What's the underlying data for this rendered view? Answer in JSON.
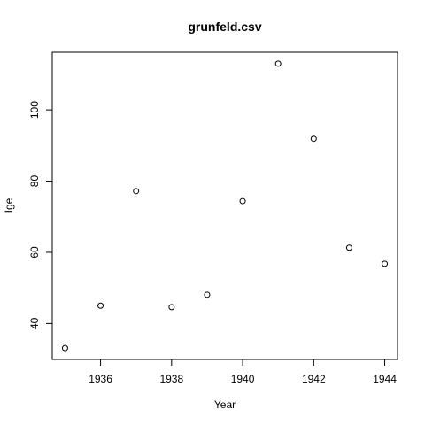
{
  "chart_data": {
    "type": "scatter",
    "title": "grunfeld.csv",
    "xlabel": "Year",
    "ylabel": "Ige",
    "x": [
      1935,
      1936,
      1937,
      1938,
      1939,
      1940,
      1941,
      1942,
      1943,
      1944
    ],
    "y": [
      33.1,
      45.0,
      77.2,
      44.6,
      48.1,
      74.4,
      113.0,
      91.9,
      61.3,
      56.8
    ],
    "xlim": [
      1934.64,
      1944.36
    ],
    "ylim": [
      29.9,
      116.2
    ],
    "xticks": [
      1936,
      1938,
      1940,
      1942,
      1944
    ],
    "yticks": [
      40,
      60,
      80,
      100
    ],
    "grid": false,
    "marker": "open-circle",
    "colors": {
      "point": "#000000",
      "background": "#ffffff"
    }
  }
}
